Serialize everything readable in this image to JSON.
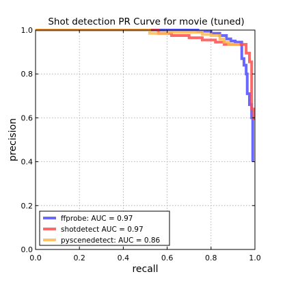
{
  "chart_data": {
    "type": "line",
    "title": "Shot detection PR Curve for movie (tuned)",
    "xlabel": "recall",
    "ylabel": "precision",
    "xlim": [
      0.0,
      1.0
    ],
    "ylim": [
      0.0,
      1.0
    ],
    "xticks": [
      "0.0",
      "0.2",
      "0.4",
      "0.6",
      "0.8",
      "1.0"
    ],
    "yticks": [
      "0.0",
      "0.2",
      "0.4",
      "0.6",
      "0.8",
      "1.0"
    ],
    "grid": true,
    "legend_position": "lower-left",
    "series": [
      {
        "name": "ffprobe: AUC = 0.97",
        "color": "#4d4dff",
        "points": [
          [
            0.0,
            1.0
          ],
          [
            0.74,
            1.0
          ],
          [
            0.74,
            0.995
          ],
          [
            0.8,
            0.995
          ],
          [
            0.8,
            0.985
          ],
          [
            0.84,
            0.985
          ],
          [
            0.84,
            0.975
          ],
          [
            0.87,
            0.975
          ],
          [
            0.87,
            0.96
          ],
          [
            0.89,
            0.96
          ],
          [
            0.89,
            0.95
          ],
          [
            0.91,
            0.95
          ],
          [
            0.91,
            0.945
          ],
          [
            0.94,
            0.945
          ],
          [
            0.94,
            0.92
          ],
          [
            0.94,
            0.87
          ],
          [
            0.95,
            0.87
          ],
          [
            0.95,
            0.84
          ],
          [
            0.96,
            0.84
          ],
          [
            0.96,
            0.8
          ],
          [
            0.965,
            0.8
          ],
          [
            0.965,
            0.71
          ],
          [
            0.975,
            0.71
          ],
          [
            0.975,
            0.66
          ],
          [
            0.985,
            0.66
          ],
          [
            0.985,
            0.6
          ],
          [
            0.99,
            0.6
          ],
          [
            0.99,
            0.4
          ]
        ]
      },
      {
        "name": "shotdetect AUC = 0.97",
        "color": "#ff4d4d",
        "points": [
          [
            0.0,
            1.0
          ],
          [
            0.56,
            1.0
          ],
          [
            0.56,
            0.985
          ],
          [
            0.62,
            0.985
          ],
          [
            0.62,
            0.975
          ],
          [
            0.7,
            0.975
          ],
          [
            0.7,
            0.965
          ],
          [
            0.76,
            0.965
          ],
          [
            0.76,
            0.955
          ],
          [
            0.82,
            0.955
          ],
          [
            0.82,
            0.945
          ],
          [
            0.86,
            0.945
          ],
          [
            0.86,
            0.935
          ],
          [
            0.96,
            0.935
          ],
          [
            0.96,
            0.895
          ],
          [
            0.975,
            0.895
          ],
          [
            0.975,
            0.855
          ],
          [
            0.985,
            0.855
          ],
          [
            0.985,
            0.64
          ],
          [
            0.993,
            0.64
          ],
          [
            0.993,
            0.59
          ]
        ]
      },
      {
        "name": "pyscenedetect: AUC = 0.86",
        "color": "#ffb84d",
        "points": [
          [
            0.0,
            1.0
          ],
          [
            0.52,
            1.0
          ],
          [
            0.52,
            0.985
          ],
          [
            0.6,
            0.985
          ],
          [
            0.6,
            0.99
          ],
          [
            0.76,
            0.99
          ],
          [
            0.76,
            0.98
          ],
          [
            0.8,
            0.98
          ],
          [
            0.8,
            0.975
          ],
          [
            0.84,
            0.975
          ],
          [
            0.84,
            0.96
          ],
          [
            0.86,
            0.96
          ],
          [
            0.86,
            0.945
          ],
          [
            0.88,
            0.945
          ],
          [
            0.88,
            0.935
          ],
          [
            0.93,
            0.935
          ]
        ]
      }
    ]
  }
}
